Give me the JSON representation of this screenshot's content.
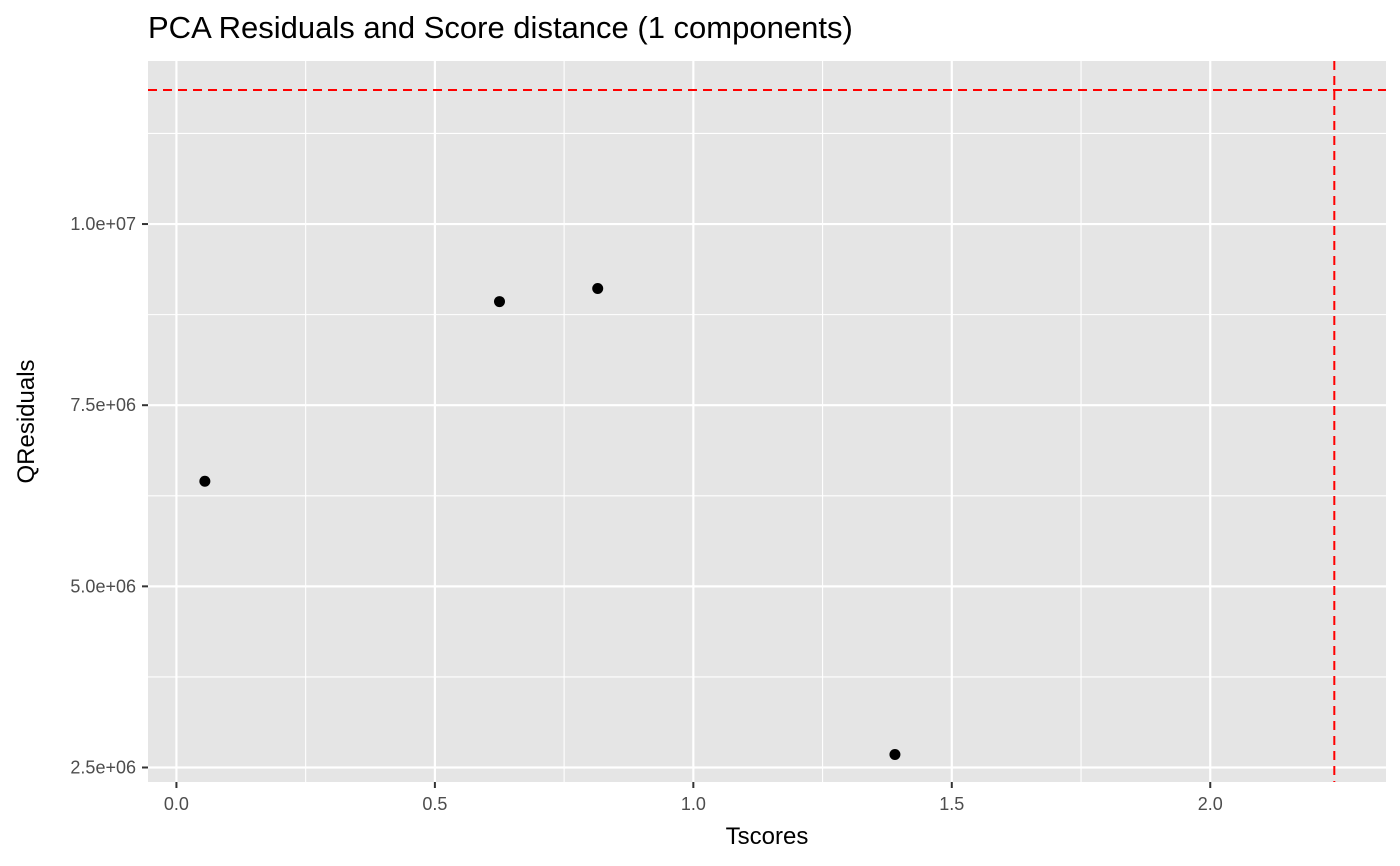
{
  "chart_data": {
    "type": "scatter",
    "title": "PCA Residuals and Score distance (1 components)",
    "xlabel": "Tscores",
    "ylabel": "QResiduals",
    "xlim": [
      -0.055,
      2.34
    ],
    "ylim": [
      2300000,
      12250000
    ],
    "x_ticks": [
      0.0,
      0.5,
      1.0,
      1.5,
      2.0
    ],
    "x_tick_labels": [
      "0.0",
      "0.5",
      "1.0",
      "1.5",
      "2.0"
    ],
    "y_ticks": [
      2500000,
      5000000,
      7500000,
      10000000
    ],
    "y_tick_labels": [
      "2.5e+06",
      "5.0e+06",
      "7.5e+06",
      "1.0e+07"
    ],
    "grid": true,
    "background_color": "#e5e5e5",
    "grid_color": "#ffffff",
    "point_color": "#000000",
    "points": [
      {
        "x": 0.055,
        "y": 6450000
      },
      {
        "x": 0.625,
        "y": 8930000
      },
      {
        "x": 0.815,
        "y": 9110000
      },
      {
        "x": 1.39,
        "y": 2680000
      }
    ],
    "reference_lines": [
      {
        "orientation": "horizontal",
        "value": 11850000,
        "color": "#ff0000",
        "style": "dashed"
      },
      {
        "orientation": "vertical",
        "value": 2.24,
        "color": "#ff0000",
        "style": "dashed"
      }
    ]
  }
}
